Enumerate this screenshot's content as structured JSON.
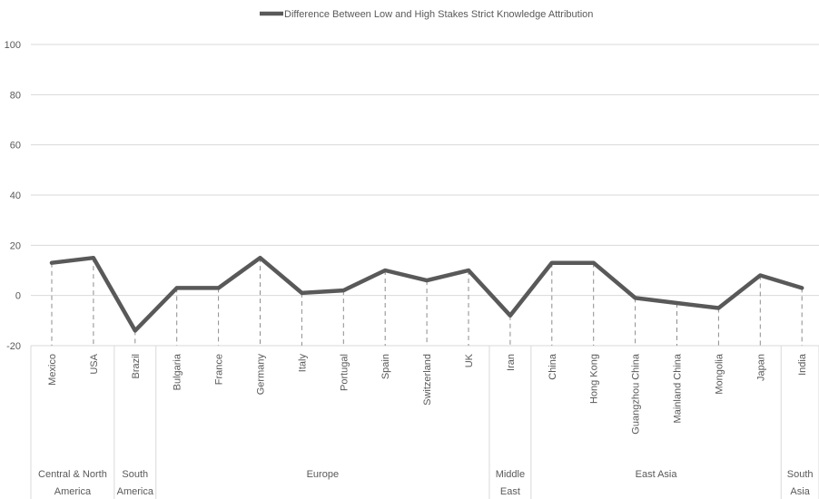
{
  "chart_data": {
    "type": "line",
    "legend": {
      "label": "Difference Between Low and High Stakes Strict Knowledge Attribution",
      "position": "top",
      "color": "#595959"
    },
    "ylim": [
      -20,
      100
    ],
    "yticks": [
      -20,
      0,
      20,
      40,
      60,
      80,
      100
    ],
    "categories": [
      "Mexico",
      "USA",
      "Brazil",
      "Bulgaria",
      "France",
      "Germany",
      "Italy",
      "Portugal",
      "Spain",
      "Switzerland",
      "UK",
      "Iran",
      "China",
      "Hong Kong",
      "Guangzhou China",
      "Mainland China",
      "Mongolia",
      "Japan",
      "India"
    ],
    "series": [
      {
        "name": "Difference Between Low and High Stakes Strict Knowledge Attribution",
        "values": [
          13,
          15,
          -14,
          3,
          3,
          15,
          1,
          2,
          10,
          6,
          10,
          -8,
          13,
          13,
          -1,
          -3,
          -5,
          8,
          3
        ],
        "color": "#595959"
      }
    ],
    "groups": [
      {
        "lines": [
          "Central & North",
          "America"
        ],
        "start": 0,
        "end": 1
      },
      {
        "lines": [
          "South",
          "America"
        ],
        "start": 2,
        "end": 2
      },
      {
        "lines": [
          "Europe"
        ],
        "start": 3,
        "end": 10
      },
      {
        "lines": [
          "Middle",
          "East"
        ],
        "start": 11,
        "end": 11
      },
      {
        "lines": [
          "East Asia"
        ],
        "start": 12,
        "end": 17
      },
      {
        "lines": [
          "South",
          "Asia"
        ],
        "start": 18,
        "end": 18
      }
    ],
    "grid": true
  }
}
